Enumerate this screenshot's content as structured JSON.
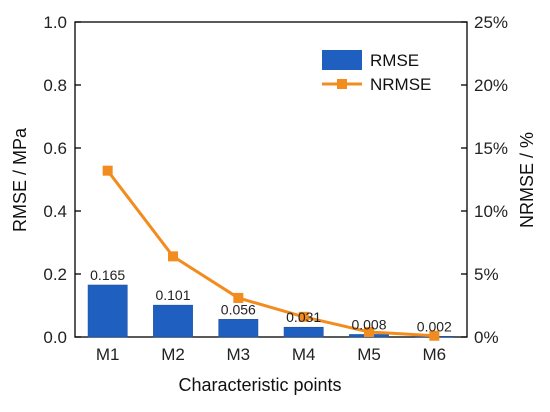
{
  "chart_data": {
    "type": "bar",
    "categories": [
      "M1",
      "M2",
      "M3",
      "M4",
      "M5",
      "M6"
    ],
    "series": [
      {
        "name": "RMSE",
        "type": "bar",
        "axis": "left",
        "values": [
          0.165,
          0.101,
          0.056,
          0.031,
          0.008,
          0.002
        ],
        "data_labels": [
          "0.165",
          "0.101",
          "0.056",
          "0.031",
          "0.008",
          "0.002"
        ],
        "color": "#1f5fbf"
      },
      {
        "name": "NRMSE",
        "type": "line",
        "axis": "right",
        "values": [
          13.2,
          6.4,
          3.1,
          1.6,
          0.4,
          0.1
        ],
        "color": "#f28c1e",
        "marker": "square"
      }
    ],
    "xlabel": "Characteristic points",
    "ylabel": "RMSE / MPa",
    "y2label": "NRMSE / %",
    "ylim": [
      0,
      1.0
    ],
    "y2lim": [
      0,
      25
    ],
    "yticks": [
      "0.0",
      "0.2",
      "0.4",
      "0.6",
      "0.8",
      "1.0"
    ],
    "y2ticks": [
      "0%",
      "5%",
      "10%",
      "15%",
      "20%",
      "25%"
    ],
    "grid": false,
    "legend_position": "top-right"
  }
}
